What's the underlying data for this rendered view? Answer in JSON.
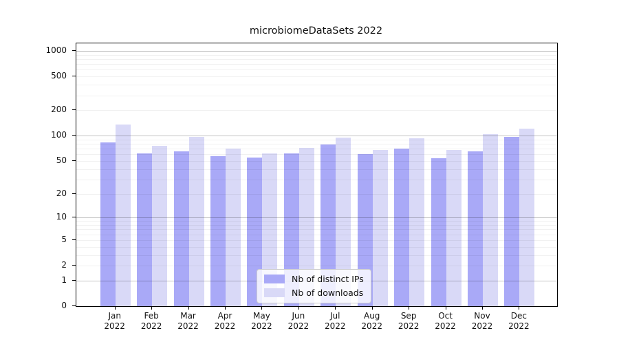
{
  "title": "microbiomeDataSets 2022",
  "colors": {
    "bar_ips": "#a9a9f7",
    "bar_downloads": "#d9d9f7",
    "grid_major": "rgba(0,0,0,0.24)",
    "grid_minor": "rgba(0,0,0,0.055)",
    "axis": "#000000"
  },
  "legend": {
    "items": [
      {
        "key": "ips",
        "label": "Nb of distinct IPs"
      },
      {
        "key": "downloads",
        "label": "Nb of downloads"
      }
    ],
    "position": "lower center"
  },
  "chart_data": {
    "type": "bar",
    "title": "microbiomeDataSets 2022",
    "scale": "log1p",
    "xlabel": "",
    "ylabel": "",
    "year": "2022",
    "categories": [
      "Jan",
      "Feb",
      "Mar",
      "Apr",
      "May",
      "Jun",
      "Jul",
      "Aug",
      "Sep",
      "Oct",
      "Nov",
      "Dec"
    ],
    "series": [
      {
        "name": "Nb of distinct IPs",
        "values": [
          83,
          61,
          65,
          57,
          55,
          61,
          78,
          60,
          70,
          54,
          65,
          97
        ]
      },
      {
        "name": "Nb of downloads",
        "values": [
          135,
          75,
          96,
          70,
          62,
          71,
          94,
          67,
          93,
          67,
          104,
          120
        ]
      }
    ],
    "yticks": [
      0,
      1,
      2,
      5,
      10,
      20,
      50,
      100,
      200,
      500,
      1000
    ],
    "ylim": [
      0,
      1228
    ],
    "grid": true,
    "legend_position": "lower center"
  }
}
